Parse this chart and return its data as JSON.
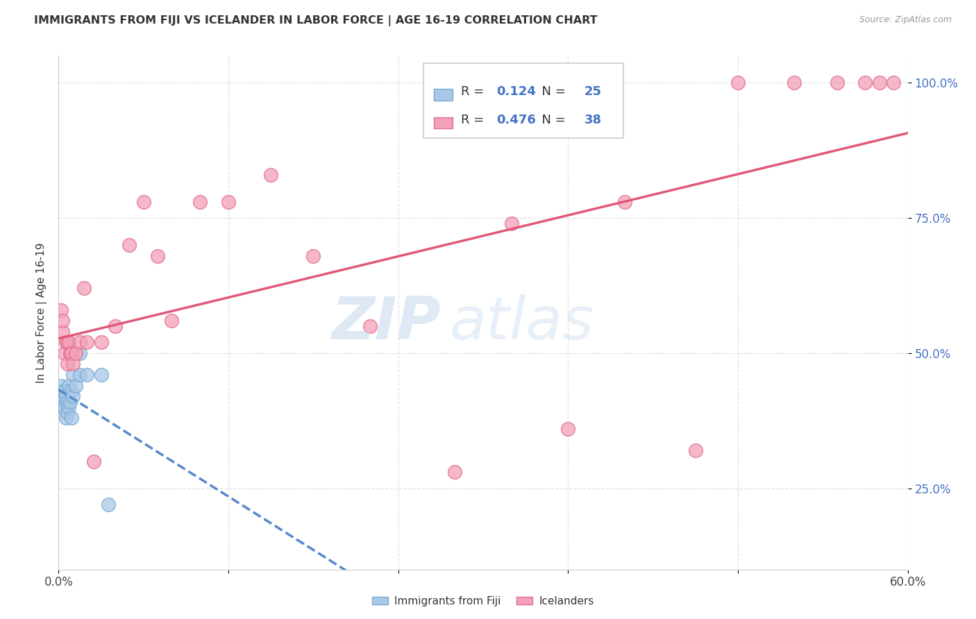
{
  "title": "IMMIGRANTS FROM FIJI VS ICELANDER IN LABOR FORCE | AGE 16-19 CORRELATION CHART",
  "source": "Source: ZipAtlas.com",
  "ylabel": "In Labor Force | Age 16-19",
  "xmin": 0.0,
  "xmax": 0.6,
  "ymin": 0.1,
  "ymax": 1.05,
  "ytick_labels": [
    "25.0%",
    "50.0%",
    "75.0%",
    "100.0%"
  ],
  "ytick_values": [
    0.25,
    0.5,
    0.75,
    1.0
  ],
  "xtick_labels": [
    "0.0%",
    "60.0%"
  ],
  "xtick_values": [
    0.0,
    0.6
  ],
  "fiji_R": "0.124",
  "fiji_N": "25",
  "iceland_R": "0.476",
  "iceland_N": "38",
  "fiji_color": "#a8c8e8",
  "fiji_edge_color": "#7aaad0",
  "fiji_line_color": "#5588cc",
  "iceland_color": "#f4a0b8",
  "iceland_edge_color": "#e07090",
  "iceland_line_color": "#e05878",
  "fiji_x": [
    0.002,
    0.002,
    0.002,
    0.003,
    0.003,
    0.003,
    0.004,
    0.004,
    0.005,
    0.005,
    0.006,
    0.006,
    0.007,
    0.007,
    0.008,
    0.009,
    0.009,
    0.01,
    0.01,
    0.012,
    0.015,
    0.015,
    0.02,
    0.03,
    0.035
  ],
  "fiji_y": [
    0.42,
    0.43,
    0.44,
    0.4,
    0.41,
    0.42,
    0.4,
    0.43,
    0.38,
    0.42,
    0.39,
    0.41,
    0.4,
    0.44,
    0.41,
    0.38,
    0.43,
    0.42,
    0.46,
    0.44,
    0.46,
    0.5,
    0.46,
    0.46,
    0.22
  ],
  "iceland_x": [
    0.002,
    0.003,
    0.003,
    0.004,
    0.005,
    0.006,
    0.006,
    0.007,
    0.008,
    0.009,
    0.01,
    0.012,
    0.015,
    0.018,
    0.02,
    0.025,
    0.03,
    0.04,
    0.05,
    0.06,
    0.07,
    0.08,
    0.1,
    0.12,
    0.15,
    0.18,
    0.22,
    0.28,
    0.32,
    0.36,
    0.4,
    0.45,
    0.48,
    0.52,
    0.55,
    0.57,
    0.58,
    0.59
  ],
  "iceland_y": [
    0.58,
    0.54,
    0.56,
    0.5,
    0.52,
    0.48,
    0.52,
    0.52,
    0.5,
    0.5,
    0.48,
    0.5,
    0.52,
    0.62,
    0.52,
    0.3,
    0.52,
    0.55,
    0.7,
    0.78,
    0.68,
    0.56,
    0.78,
    0.78,
    0.83,
    0.68,
    0.55,
    0.28,
    0.74,
    0.36,
    0.78,
    0.32,
    1.0,
    1.0,
    1.0,
    1.0,
    1.0,
    1.0
  ],
  "watermark_zip": "ZIP",
  "watermark_atlas": "atlas",
  "grid_color": "#dddddd",
  "background_color": "#ffffff"
}
